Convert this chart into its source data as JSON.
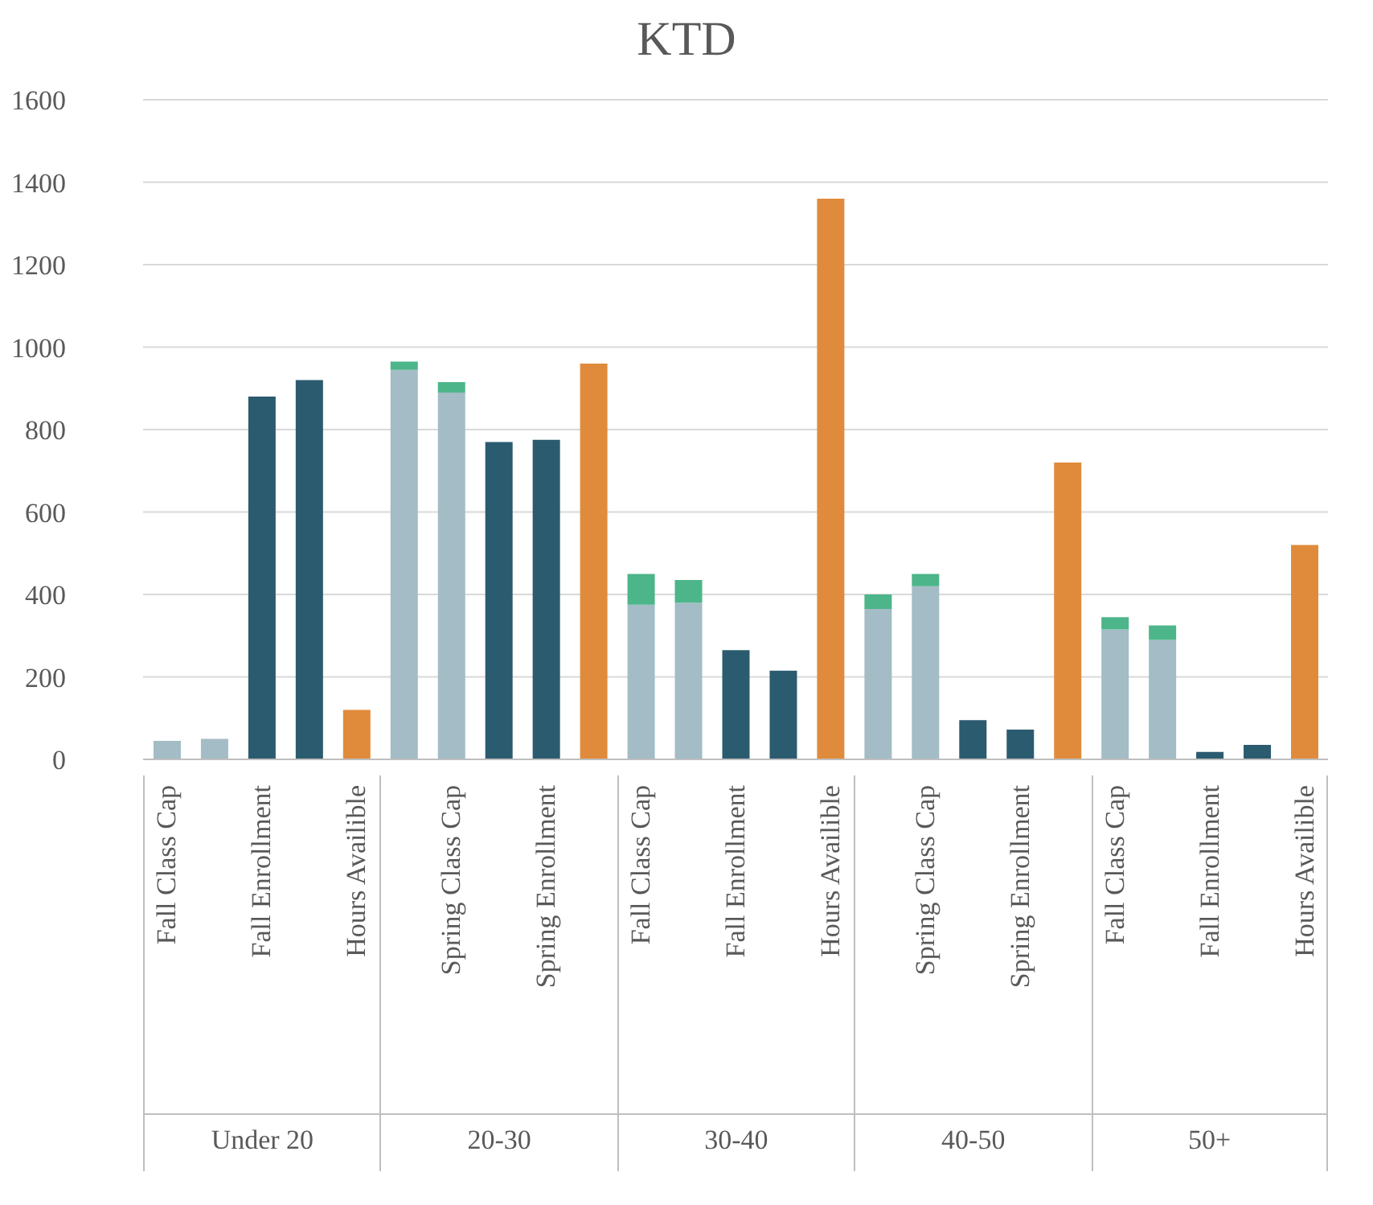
{
  "chart_data": {
    "type": "bar",
    "title": "KTD",
    "stacked": true,
    "grid": "y",
    "legend": false,
    "categories": [
      "Fall Class Cap",
      null,
      "Fall Enrollment",
      null,
      "Hours Availible",
      null,
      "Spring Class Cap",
      null,
      "Spring Enrollment",
      null,
      "Fall Class Cap",
      null,
      "Fall Enrollment",
      null,
      "Hours Availible",
      null,
      "Spring Class Cap",
      null,
      "Spring Enrollment",
      null,
      "Fall Class Cap",
      null,
      "Fall Enrollment",
      null,
      "Hours Availible"
    ],
    "series": [
      {
        "color": "#a3bcc5",
        "values": [
          45,
          50,
          null,
          null,
          null,
          945,
          890,
          null,
          null,
          null,
          375,
          380,
          null,
          null,
          null,
          365,
          420,
          null,
          null,
          null,
          315,
          290,
          null,
          null,
          null
        ]
      },
      {
        "color": "#4db58a",
        "values": [
          null,
          null,
          null,
          null,
          null,
          20,
          25,
          null,
          null,
          null,
          75,
          55,
          null,
          null,
          null,
          35,
          30,
          null,
          null,
          null,
          30,
          35,
          null,
          null,
          null
        ]
      },
      {
        "color": "#2b5b6f",
        "values": [
          null,
          null,
          880,
          920,
          null,
          null,
          null,
          770,
          775,
          null,
          null,
          null,
          265,
          215,
          null,
          null,
          null,
          95,
          72,
          null,
          null,
          null,
          18,
          35,
          null
        ]
      },
      {
        "color": "#e08b3c",
        "values": [
          null,
          null,
          null,
          null,
          120,
          null,
          null,
          null,
          null,
          960,
          null,
          null,
          null,
          null,
          1360,
          null,
          null,
          null,
          null,
          720,
          null,
          null,
          null,
          null,
          520
        ]
      }
    ],
    "ylim": [
      0,
      1600
    ],
    "yticks": [
      0,
      200,
      400,
      600,
      800,
      1000,
      1200,
      1400,
      1600
    ],
    "annotations": [
      "Under 20",
      "20-30",
      "30-40",
      "40-50",
      "50+"
    ]
  }
}
